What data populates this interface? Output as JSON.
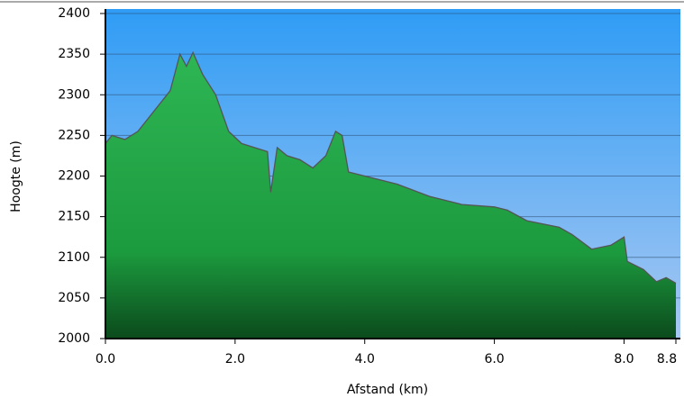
{
  "chart_data": {
    "type": "area",
    "xlabel": "Afstand (km)",
    "ylabel": "Hoogte (m)",
    "x": [
      0,
      0.1,
      0.3,
      0.5,
      0.7,
      0.9,
      1.0,
      1.15,
      1.25,
      1.35,
      1.5,
      1.7,
      1.9,
      2.1,
      2.3,
      2.5,
      2.55,
      2.65,
      2.8,
      3.0,
      3.2,
      3.4,
      3.55,
      3.65,
      3.75,
      4.0,
      4.5,
      5.0,
      5.5,
      6.0,
      6.2,
      6.5,
      7.0,
      7.2,
      7.5,
      7.8,
      8.0,
      8.05,
      8.3,
      8.5,
      8.65,
      8.8
    ],
    "values": [
      2240,
      2250,
      2245,
      2255,
      2275,
      2295,
      2305,
      2350,
      2335,
      2352,
      2325,
      2300,
      2255,
      2240,
      2235,
      2230,
      2180,
      2235,
      2225,
      2220,
      2210,
      2225,
      2255,
      2250,
      2205,
      2200,
      2190,
      2175,
      2165,
      2162,
      2158,
      2145,
      2137,
      2128,
      2110,
      2115,
      2125,
      2095,
      2085,
      2070,
      2075,
      2068
    ],
    "color": "#1fa040",
    "xlim": [
      0,
      8.8
    ],
    "ylim": [
      2000,
      2400
    ],
    "xticks": [
      {
        "value": 0,
        "label": "0.0"
      },
      {
        "value": 2,
        "label": "2.0"
      },
      {
        "value": 4,
        "label": "4.0"
      },
      {
        "value": 6,
        "label": "6.0"
      },
      {
        "value": 8,
        "label": "8.0"
      },
      {
        "value": 8.8,
        "label": "8.8"
      }
    ],
    "yticks": [
      2000,
      2050,
      2100,
      2150,
      2200,
      2250,
      2300,
      2350,
      2400
    ],
    "grid": true
  }
}
